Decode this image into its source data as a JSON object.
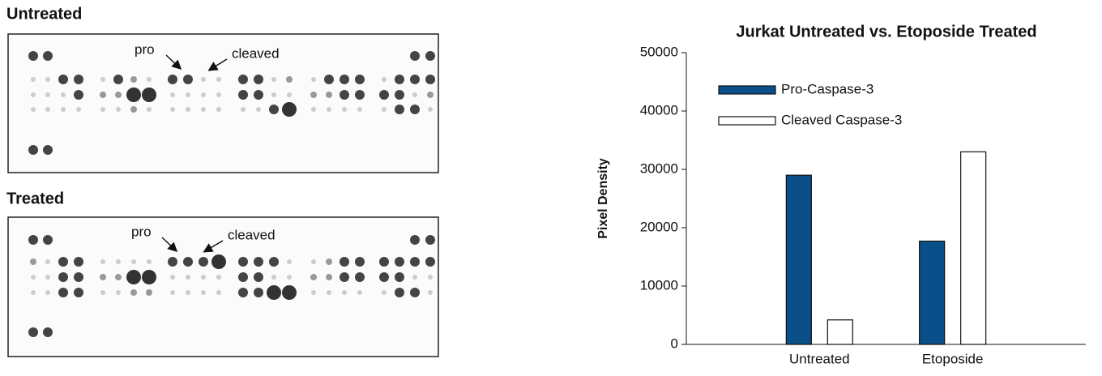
{
  "panels": [
    {
      "title": "Untreated",
      "labels": [
        "pro",
        "cleaved"
      ]
    },
    {
      "title": "Treated",
      "labels": [
        "pro",
        "cleaved"
      ]
    }
  ],
  "chart_data": {
    "type": "bar",
    "title": "Jurkat Untreated vs. Etoposide Treated",
    "y_label": "Pixel Density",
    "categories": [
      "Untreated",
      "Etoposide"
    ],
    "series": [
      {
        "name": "Pro-Caspase-3",
        "color": "#0b4f8a",
        "values": [
          29000,
          17700
        ]
      },
      {
        "name": "Cleaved Caspase-3",
        "color": "#ffffff",
        "values": [
          4200,
          33000
        ]
      }
    ],
    "ylim": [
      0,
      50000
    ],
    "yticks": [
      0,
      10000,
      20000,
      30000,
      40000,
      50000
    ],
    "grid": false,
    "legend": "upper left"
  }
}
